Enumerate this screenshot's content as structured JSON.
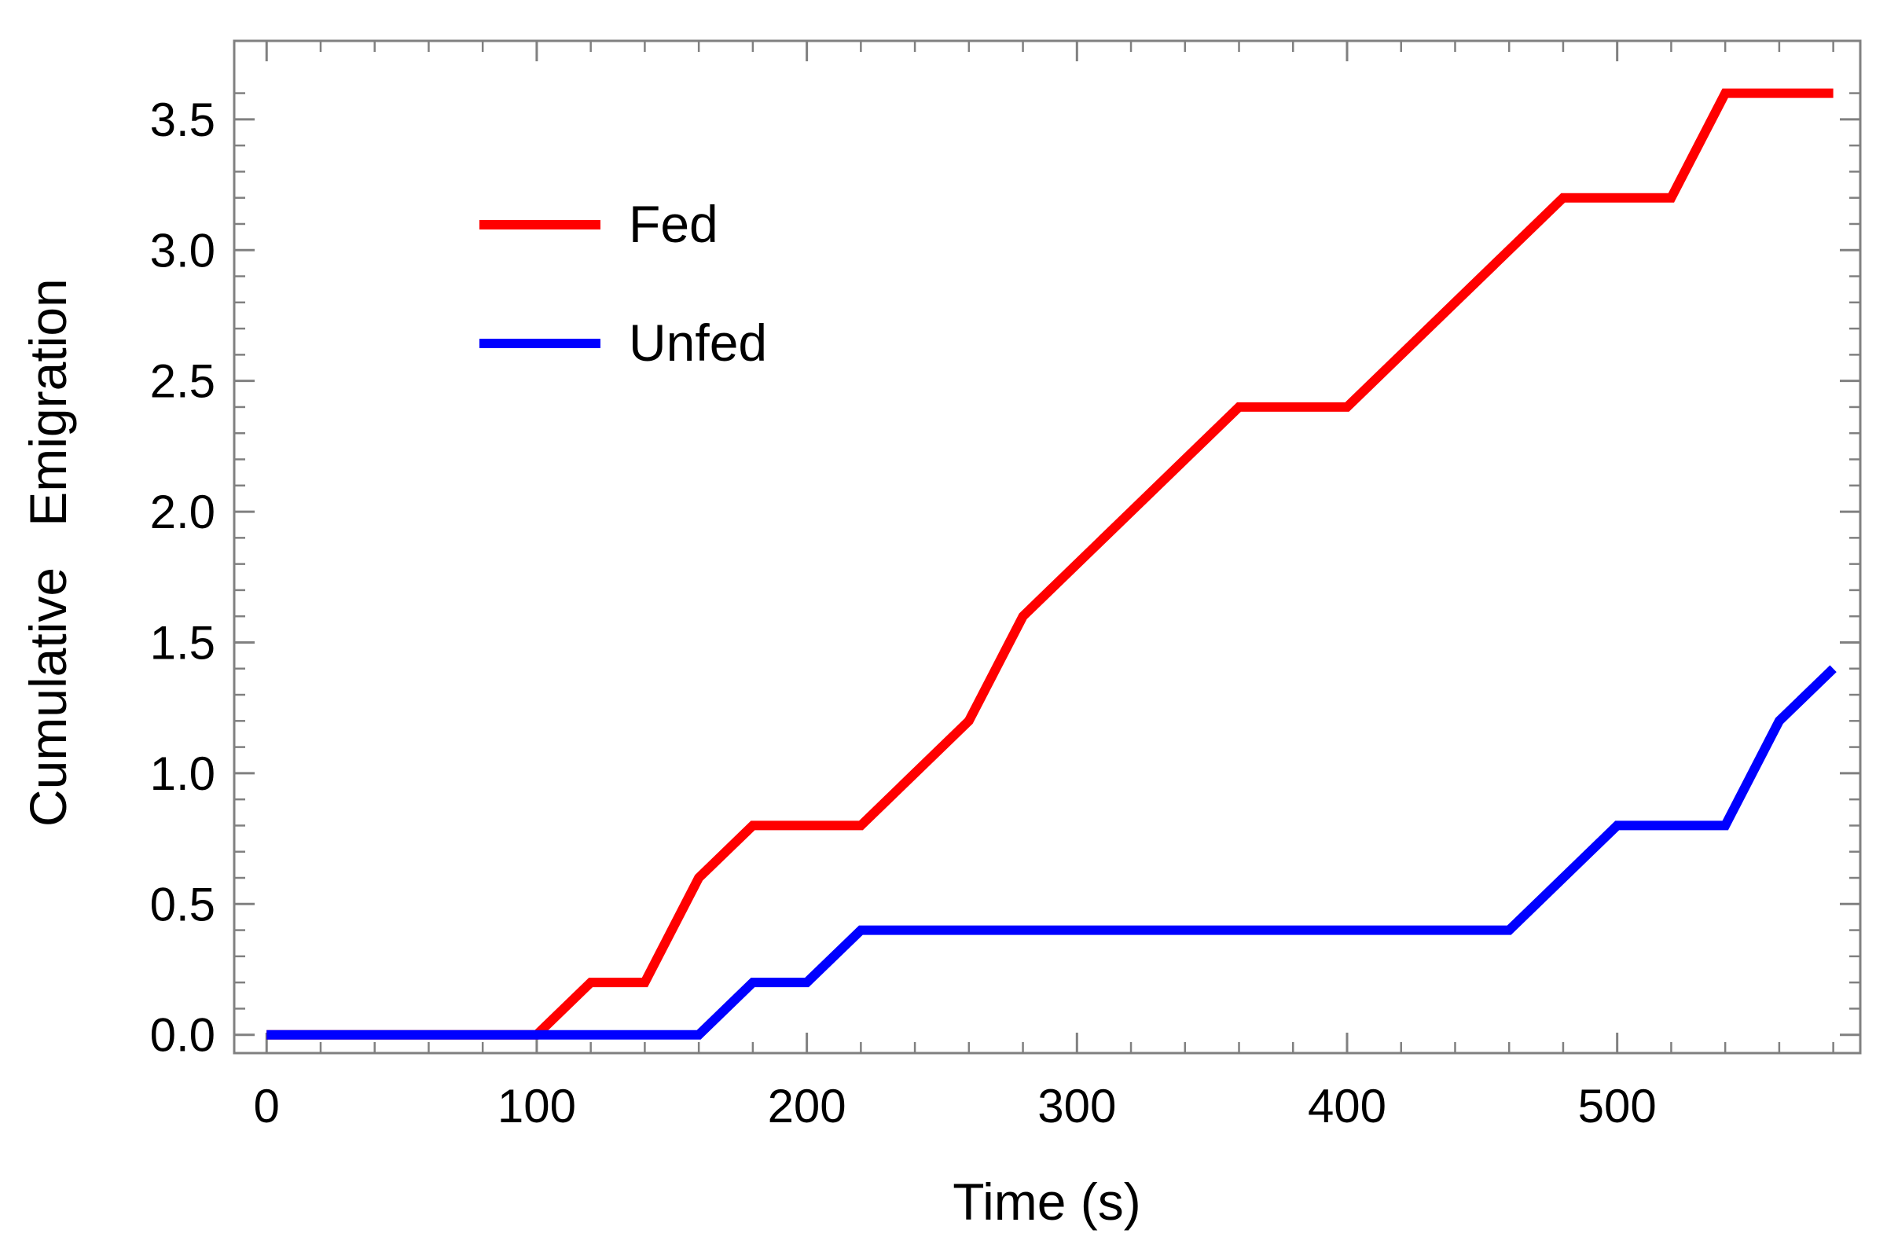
{
  "chart_data": {
    "type": "line",
    "title": "",
    "xlabel": "Time (s)",
    "ylabel": [
      "Cumulative",
      "Emigration"
    ],
    "xlim": [
      -12,
      590
    ],
    "ylim": [
      -0.07,
      3.8
    ],
    "x_ticks": [
      0,
      100,
      200,
      300,
      400,
      500
    ],
    "x_tick_labels": [
      "0",
      "100",
      "200",
      "300",
      "400",
      "500"
    ],
    "y_ticks": [
      0.0,
      0.5,
      1.0,
      1.5,
      2.0,
      2.5,
      3.0,
      3.5
    ],
    "y_tick_labels": [
      "0.0",
      "0.5",
      "1.0",
      "1.5",
      "2.0",
      "2.5",
      "3.0",
      "3.5"
    ],
    "grid": false,
    "legend_position": "top-left",
    "series": [
      {
        "name": "Fed",
        "color": "#ff0000",
        "x": [
          0,
          100,
          120,
          140,
          160,
          180,
          220,
          260,
          280,
          360,
          400,
          480,
          520,
          540,
          580
        ],
        "y": [
          0.0,
          0.0,
          0.2,
          0.2,
          0.6,
          0.8,
          0.8,
          1.2,
          1.6,
          2.4,
          2.4,
          3.2,
          3.2,
          3.6,
          3.6
        ]
      },
      {
        "name": "Unfed",
        "color": "#0000ff",
        "x": [
          0,
          160,
          180,
          200,
          220,
          460,
          500,
          540,
          560,
          580
        ],
        "y": [
          0.0,
          0.0,
          0.2,
          0.2,
          0.4,
          0.4,
          0.8,
          0.8,
          1.2,
          1.4
        ]
      }
    ]
  }
}
